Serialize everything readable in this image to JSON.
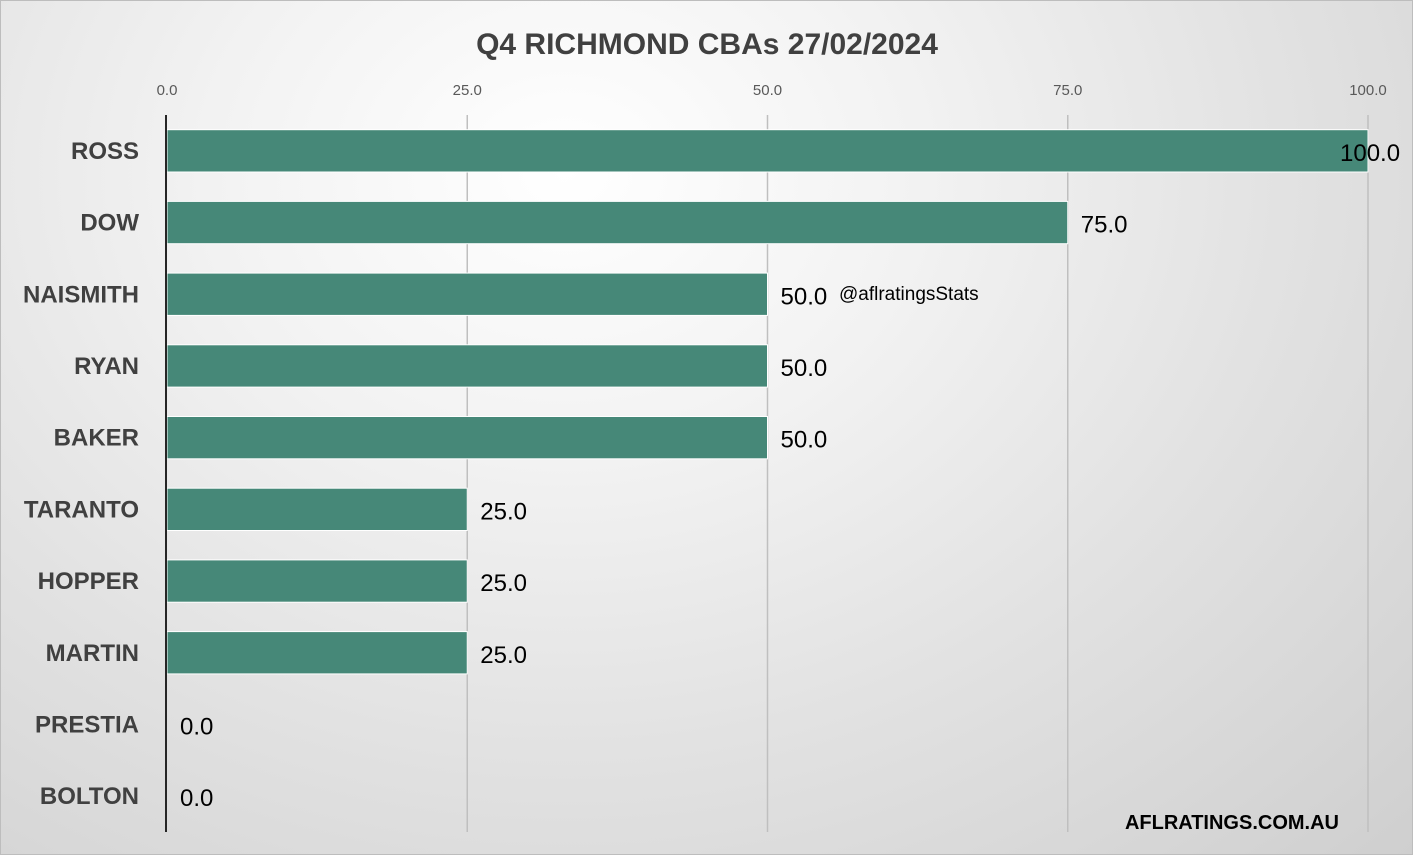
{
  "chart_data": {
    "type": "bar",
    "orientation": "horizontal",
    "title": "Q4 RICHMOND CBAs 27/02/2024",
    "categories": [
      "ROSS",
      "DOW",
      "NAISMITH",
      "RYAN",
      "BAKER",
      "TARANTO",
      "HOPPER",
      "MARTIN",
      "PRESTIA",
      "BOLTON"
    ],
    "values": [
      100.0,
      75.0,
      50.0,
      50.0,
      50.0,
      25.0,
      25.0,
      25.0,
      0.0,
      0.0
    ],
    "value_labels": [
      "100.0",
      "75.0",
      "50.0",
      "50.0",
      "50.0",
      "25.0",
      "25.0",
      "25.0",
      "0.0",
      "0.0"
    ],
    "xlim": [
      0,
      100
    ],
    "x_ticks": [
      0,
      25,
      50,
      75,
      100
    ],
    "x_tick_labels": [
      "0.0",
      "25.0",
      "50.0",
      "75.0",
      "100.0"
    ],
    "axis_position": "top",
    "grid": true,
    "annotations": [
      "@aflratingsStats",
      "AFLRATINGS.COM.AU"
    ],
    "colors": {
      "bar": "#468878",
      "gridline": "#bfbfbf",
      "axis": "#262626"
    }
  }
}
